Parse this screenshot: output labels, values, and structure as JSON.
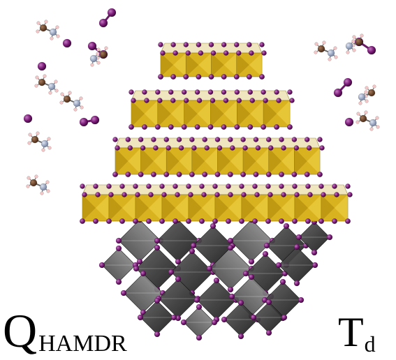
{
  "labels": {
    "left_main": "Q",
    "left_sub": "HAMDR",
    "right_main": "T",
    "right_sub": "d"
  },
  "colors": {
    "gold_front": "#d9b31f",
    "gold_top": "#f0d44a",
    "gold_side": "#b8920f",
    "iodine": "#7b1a78",
    "iodine_light": "#b15aad",
    "dark_octa": "#2a2a2a",
    "dark_octa_light": "#8a8a8a",
    "carbon": "#6b4226",
    "nitrogen": "#9aa7c4",
    "hydrogen": "#f2c6c6"
  },
  "icons": {
    "cation": "methylammonium-molecule-icon",
    "dimer": "iodine-dimer-icon"
  }
}
